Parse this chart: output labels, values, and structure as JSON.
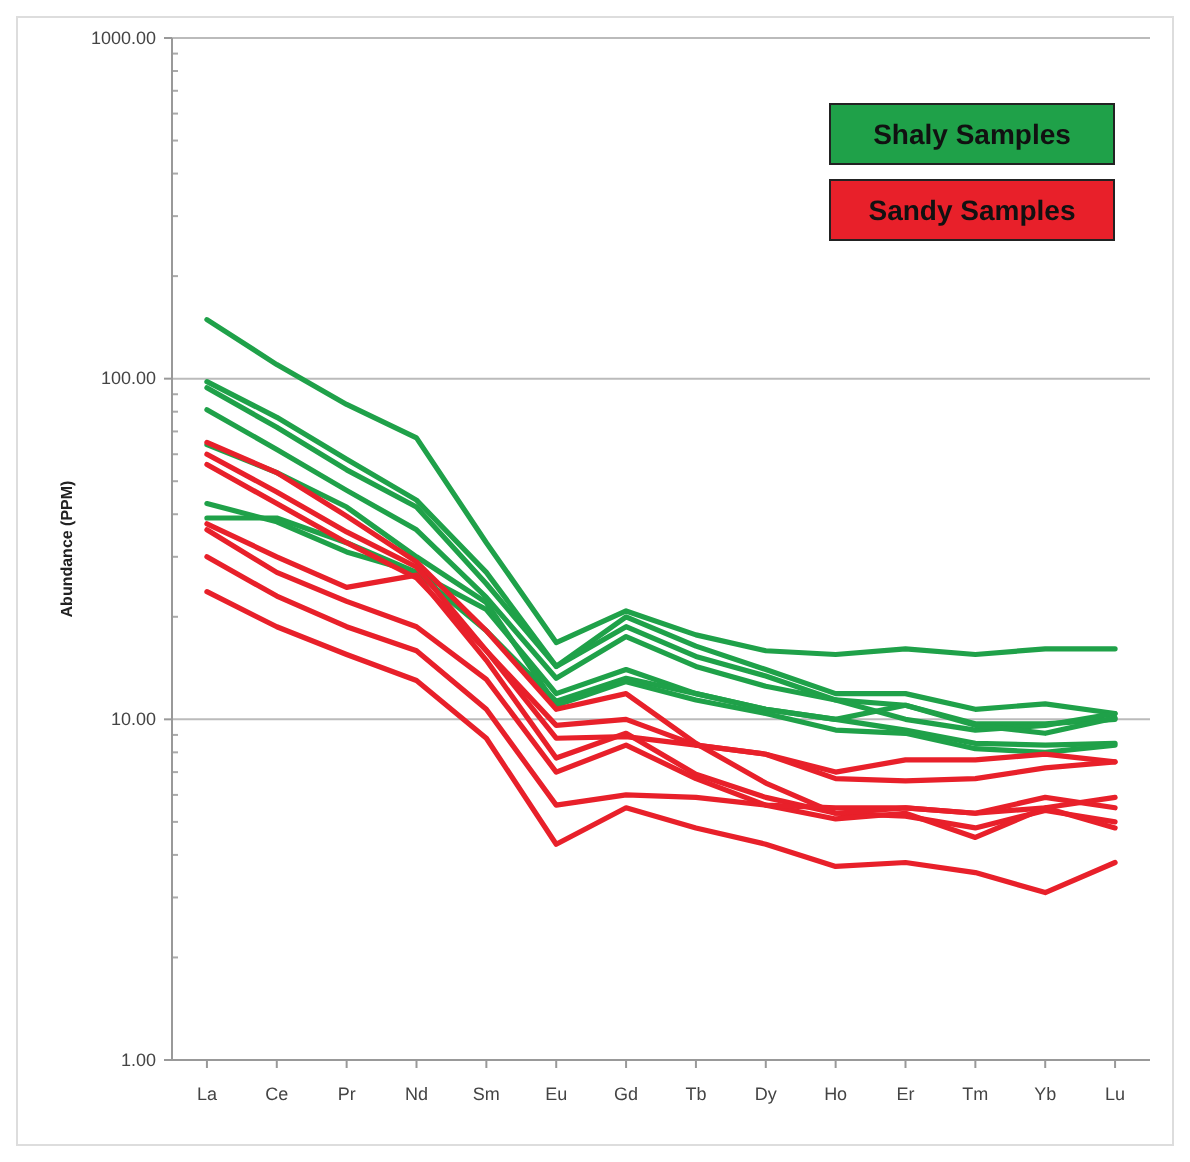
{
  "chart_data": {
    "type": "line",
    "ylabel": "Abundance (PPM)",
    "log": "y",
    "grid": "y",
    "legend": "top right",
    "line_style": "solid",
    "categories": [
      "La",
      "Ce",
      "Pr",
      "Nd",
      "Sm",
      "Eu",
      "Gd",
      "Tb",
      "Dy",
      "Ho",
      "Er",
      "Tm",
      "Yb",
      "Lu"
    ],
    "ylim": [
      1,
      1000
    ],
    "yticks": [
      {
        "value": 1,
        "label": "1.00"
      },
      {
        "value": 10,
        "label": "10.00"
      },
      {
        "value": 100,
        "label": "100.00"
      },
      {
        "value": 1000,
        "label": "1000.00"
      }
    ],
    "series": [
      {
        "name": "Shaly Samples",
        "color": "#1fa149",
        "values": [
          149,
          110,
          84,
          67,
          33,
          16.8,
          20.8,
          17.7,
          15.9,
          15.5,
          16.1,
          15.5,
          16.1,
          16.1
        ]
      },
      {
        "color": "#1fa149",
        "values": [
          98,
          77,
          58,
          44,
          27,
          14.3,
          20,
          16.4,
          14,
          11.9,
          11.9,
          10.7,
          11.1,
          10.4
        ]
      },
      {
        "color": "#1fa149",
        "values": [
          94,
          72,
          54,
          42,
          25,
          14.3,
          18.7,
          15.3,
          13.4,
          11.4,
          11,
          9.7,
          9.7,
          10
        ]
      },
      {
        "color": "#1fa149",
        "values": [
          81,
          62,
          47,
          36,
          22.8,
          13.2,
          17.5,
          14.3,
          12.5,
          11.4,
          10,
          9.3,
          9.6,
          10.4
        ]
      },
      {
        "color": "#1fa149",
        "values": [
          43,
          38,
          31,
          27,
          21,
          11.9,
          14,
          11.9,
          10.7,
          10,
          11,
          9.6,
          9.1,
          10.1
        ]
      },
      {
        "color": "#1fa149",
        "values": [
          39,
          39,
          33,
          27,
          18.2,
          11.3,
          13.2,
          11.9,
          10.7,
          10,
          9.3,
          8.5,
          8.4,
          8.5
        ]
      },
      {
        "color": "#1fa149",
        "values": [
          64,
          53,
          42,
          30,
          22,
          11,
          12.9,
          11.4,
          10.4,
          9.3,
          9.1,
          8.2,
          8,
          8.4
        ]
      },
      {
        "name": "Sandy Samples",
        "color": "#e8202a",
        "values": [
          65,
          53,
          39.5,
          29,
          18.2,
          10.7,
          11.9,
          8.5,
          6.5,
          5.3,
          5.2,
          4.8,
          5.4,
          5
        ]
      },
      {
        "color": "#e8202a",
        "values": [
          60,
          46.5,
          35.5,
          28,
          15.9,
          9.6,
          10,
          8.4,
          7.9,
          7,
          7.6,
          7.6,
          7.9,
          7.5
        ]
      },
      {
        "color": "#e8202a",
        "values": [
          56,
          43,
          33,
          26,
          15.9,
          8.8,
          8.9,
          8.4,
          7.9,
          6.7,
          6.6,
          6.7,
          7.2,
          7.5
        ]
      },
      {
        "color": "#e8202a",
        "values": [
          37.5,
          30,
          24.4,
          26.5,
          14.9,
          7.7,
          9.1,
          6.9,
          5.9,
          5.3,
          5.5,
          5.3,
          5.9,
          5.5
        ]
      },
      {
        "color": "#e8202a",
        "values": [
          36,
          27,
          22.2,
          18.7,
          13.1,
          7,
          8.4,
          6.7,
          5.6,
          5.1,
          5.3,
          4.5,
          5.5,
          4.8
        ]
      },
      {
        "color": "#e8202a",
        "values": [
          30,
          23,
          18.7,
          15.9,
          10.7,
          5.6,
          6,
          5.9,
          5.6,
          5.5,
          5.5,
          5.3,
          5.5,
          5.9
        ]
      },
      {
        "color": "#e8202a",
        "values": [
          23.7,
          18.7,
          15.5,
          13,
          8.8,
          4.3,
          5.5,
          4.8,
          4.3,
          3.7,
          3.8,
          3.55,
          3.1,
          3.8
        ]
      }
    ]
  }
}
